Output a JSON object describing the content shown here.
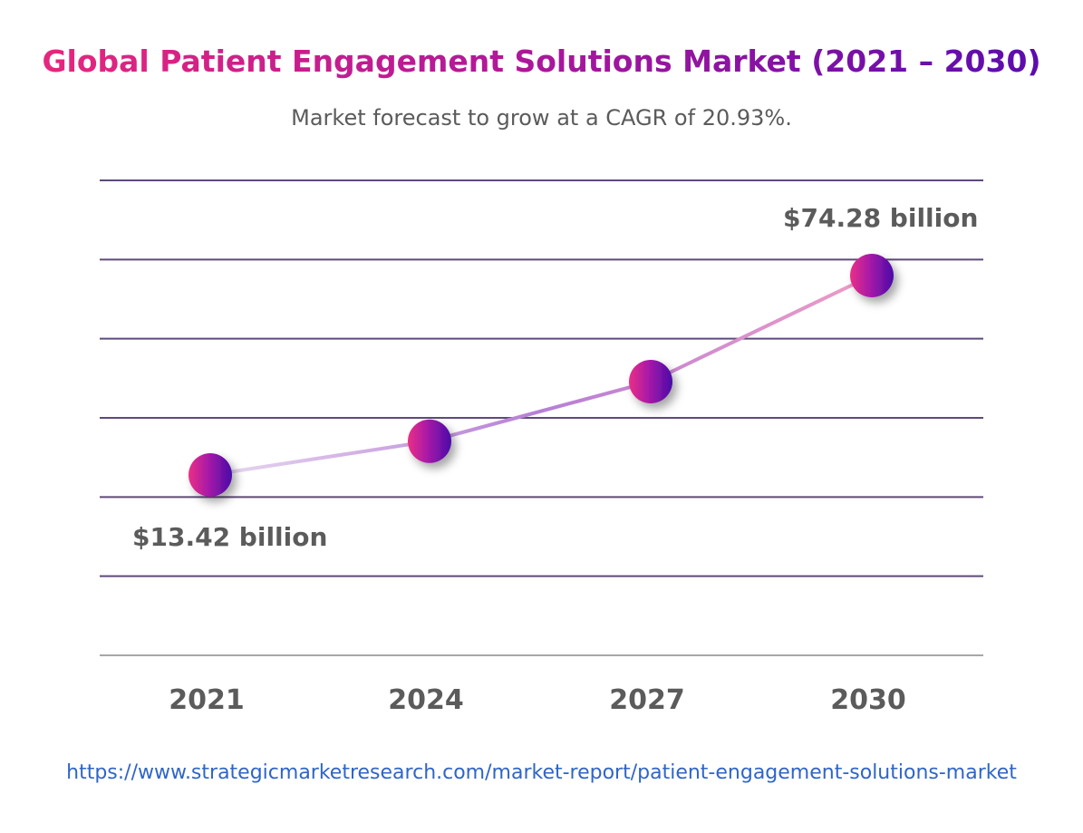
{
  "header": {
    "title": "Global Patient Engagement Solutions Market (2021 – 2030)",
    "subtitle": "Market forecast to grow at a CAGR of 20.93%."
  },
  "footer": {
    "url_text": "https://www.strategicmarketresearch.com/market-report/patient-engagement-solutions-market"
  },
  "colors": {
    "title_start": "#e5277d",
    "title_end": "#5b0cae",
    "gridline": "#5e4a7a",
    "label_text": "#5b5b5b",
    "url": "#2f65c9",
    "line_start": "#e8d9f0",
    "line_mid": "#b67fd6",
    "line_end": "#ee9cc6"
  },
  "chart_data": {
    "type": "line",
    "categories": [
      "2021",
      "2024",
      "2027",
      "2030"
    ],
    "series": [
      {
        "values": [
          13.42,
          23.7,
          41.9,
          74.28
        ]
      }
    ],
    "data_labels": [
      {
        "index": 0,
        "text": "$13.42 billion"
      },
      {
        "index": 3,
        "text": "$74.28 billion"
      }
    ],
    "grid": true
  }
}
